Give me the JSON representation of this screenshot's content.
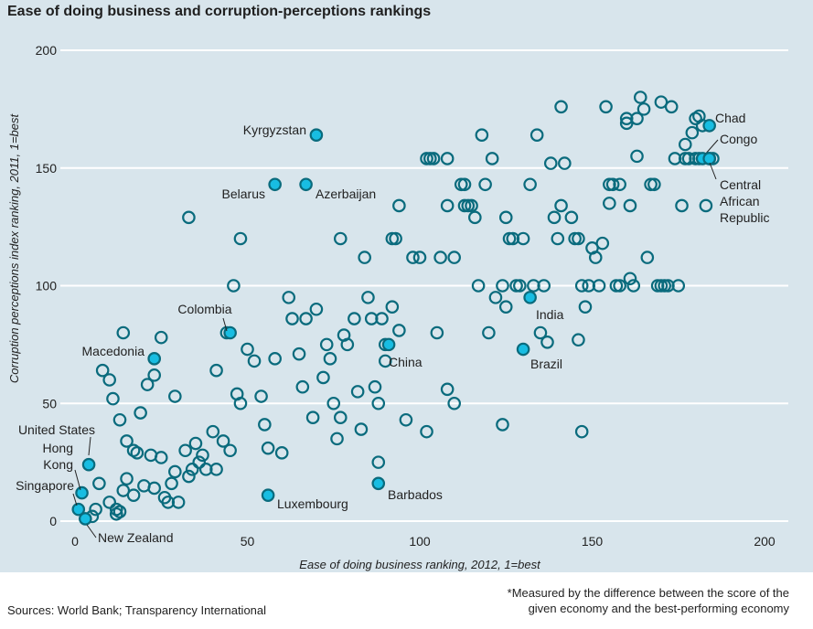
{
  "header": {
    "title": "Ease of doing business and corruption-perceptions rankings"
  },
  "chart_data": {
    "type": "scatter",
    "title": "Ease of doing business and corruption-perceptions rankings",
    "xlabel": "Ease of doing business ranking, 2012, 1=best",
    "ylabel": "Corruption perceptions index ranking, 2011, 1=best",
    "xlim": [
      -5,
      205
    ],
    "ylim": [
      0,
      202
    ],
    "xticks": [
      0,
      50,
      100,
      150,
      200
    ],
    "yticks": [
      0,
      50,
      100,
      150,
      200
    ],
    "grid": "horizontal",
    "colors": {
      "background": "#d8e5ec",
      "point_stroke": "#0a6b7d",
      "highlight_fill": "#18bde2",
      "grid": "#ffffff",
      "text": "#222222"
    },
    "highlighted": [
      {
        "name": "Kyrgyzstan",
        "x": 70,
        "y": 164
      },
      {
        "name": "Belarus",
        "x": 58,
        "y": 143
      },
      {
        "name": "Azerbaijan",
        "x": 67,
        "y": 143
      },
      {
        "name": "Chad",
        "x": 184,
        "y": 168
      },
      {
        "name": "Congo",
        "x": 182,
        "y": 154
      },
      {
        "name": "Central African Republic",
        "x": 184,
        "y": 154
      },
      {
        "name": "Colombia",
        "x": 45,
        "y": 80
      },
      {
        "name": "Macedonia",
        "x": 23,
        "y": 69
      },
      {
        "name": "China",
        "x": 91,
        "y": 75
      },
      {
        "name": "India",
        "x": 132,
        "y": 95
      },
      {
        "name": "Brazil",
        "x": 130,
        "y": 73
      },
      {
        "name": "United States",
        "x": 4,
        "y": 24
      },
      {
        "name": "Hong Kong",
        "x": 2,
        "y": 12
      },
      {
        "name": "Singapore",
        "x": 1,
        "y": 5
      },
      {
        "name": "New Zealand",
        "x": 3,
        "y": 1
      },
      {
        "name": "Luxembourg",
        "x": 56,
        "y": 11
      },
      {
        "name": "Barbados",
        "x": 88,
        "y": 16
      }
    ],
    "others": [
      [
        5,
        2
      ],
      [
        6,
        5
      ],
      [
        7,
        16
      ],
      [
        10,
        8
      ],
      [
        12,
        3
      ],
      [
        12,
        5
      ],
      [
        13,
        4
      ],
      [
        14,
        13
      ],
      [
        15,
        18
      ],
      [
        17,
        11
      ],
      [
        18,
        29
      ],
      [
        20,
        15
      ],
      [
        22,
        28
      ],
      [
        23,
        14
      ],
      [
        25,
        27
      ],
      [
        26,
        10
      ],
      [
        27,
        8
      ],
      [
        28,
        16
      ],
      [
        29,
        21
      ],
      [
        30,
        8
      ],
      [
        32,
        30
      ],
      [
        33,
        19
      ],
      [
        34,
        22
      ],
      [
        35,
        33
      ],
      [
        36,
        25
      ],
      [
        37,
        28
      ],
      [
        38,
        22
      ],
      [
        40,
        38
      ],
      [
        41,
        22
      ],
      [
        43,
        34
      ],
      [
        45,
        30
      ],
      [
        47,
        54
      ],
      [
        48,
        50
      ],
      [
        50,
        73
      ],
      [
        52,
        68
      ],
      [
        54,
        53
      ],
      [
        55,
        41
      ],
      [
        56,
        31
      ],
      [
        58,
        69
      ],
      [
        60,
        29
      ],
      [
        62,
        95
      ],
      [
        63,
        86
      ],
      [
        65,
        71
      ],
      [
        66,
        57
      ],
      [
        67,
        86
      ],
      [
        69,
        44
      ],
      [
        70,
        90
      ],
      [
        72,
        61
      ],
      [
        73,
        75
      ],
      [
        74,
        69
      ],
      [
        75,
        50
      ],
      [
        76,
        35
      ],
      [
        77,
        44
      ],
      [
        78,
        79
      ],
      [
        79,
        75
      ],
      [
        81,
        86
      ],
      [
        82,
        55
      ],
      [
        83,
        39
      ],
      [
        85,
        95
      ],
      [
        86,
        86
      ],
      [
        87,
        57
      ],
      [
        88,
        50
      ],
      [
        89,
        86
      ],
      [
        90,
        68
      ],
      [
        92,
        91
      ],
      [
        94,
        81
      ],
      [
        96,
        43
      ],
      [
        8,
        64
      ],
      [
        10,
        60
      ],
      [
        11,
        52
      ],
      [
        13,
        43
      ],
      [
        15,
        34
      ],
      [
        17,
        30
      ],
      [
        19,
        46
      ],
      [
        21,
        58
      ],
      [
        23,
        62
      ],
      [
        25,
        78
      ],
      [
        33,
        129
      ],
      [
        46,
        100
      ],
      [
        48,
        120
      ],
      [
        44,
        80
      ],
      [
        41,
        64
      ],
      [
        29,
        53
      ],
      [
        14,
        80
      ],
      [
        77,
        120
      ],
      [
        84,
        112
      ],
      [
        92,
        120
      ],
      [
        93,
        120
      ],
      [
        94,
        134
      ],
      [
        98,
        112
      ],
      [
        100,
        112
      ],
      [
        102,
        154
      ],
      [
        103,
        154
      ],
      [
        104,
        154
      ],
      [
        108,
        154
      ],
      [
        108,
        134
      ],
      [
        110,
        112
      ],
      [
        112,
        143
      ],
      [
        113,
        134
      ],
      [
        114,
        134
      ],
      [
        115,
        134
      ],
      [
        116,
        129
      ],
      [
        117,
        100
      ],
      [
        118,
        164
      ],
      [
        119,
        143
      ],
      [
        121,
        154
      ],
      [
        122,
        95
      ],
      [
        124,
        100
      ],
      [
        125,
        91
      ],
      [
        125,
        129
      ],
      [
        126,
        120
      ],
      [
        127,
        120
      ],
      [
        128,
        100
      ],
      [
        130,
        120
      ],
      [
        132,
        143
      ],
      [
        133,
        100
      ],
      [
        134,
        164
      ],
      [
        136,
        100
      ],
      [
        137,
        76
      ],
      [
        138,
        152
      ],
      [
        139,
        129
      ],
      [
        140,
        120
      ],
      [
        141,
        134
      ],
      [
        142,
        152
      ],
      [
        144,
        129
      ],
      [
        145,
        120
      ],
      [
        146,
        120
      ],
      [
        147,
        100
      ],
      [
        148,
        91
      ],
      [
        149,
        100
      ],
      [
        150,
        116
      ],
      [
        151,
        112
      ],
      [
        152,
        100
      ],
      [
        153,
        118
      ],
      [
        154,
        176
      ],
      [
        155,
        143
      ],
      [
        156,
        143
      ],
      [
        157,
        100
      ],
      [
        158,
        143
      ],
      [
        160,
        171
      ],
      [
        161,
        134
      ],
      [
        162,
        100
      ],
      [
        163,
        171
      ],
      [
        165,
        175
      ],
      [
        166,
        112
      ],
      [
        167,
        143
      ],
      [
        168,
        143
      ],
      [
        169,
        100
      ],
      [
        170,
        100
      ],
      [
        171,
        100
      ],
      [
        172,
        100
      ],
      [
        173,
        176
      ],
      [
        174,
        154
      ],
      [
        175,
        100
      ],
      [
        176,
        134
      ],
      [
        177,
        154
      ],
      [
        178,
        154
      ],
      [
        179,
        165
      ],
      [
        180,
        154
      ],
      [
        181,
        172
      ],
      [
        182,
        168
      ],
      [
        183,
        134
      ],
      [
        184,
        154
      ],
      [
        185,
        154
      ],
      [
        141,
        176
      ],
      [
        155,
        135
      ],
      [
        158,
        100
      ],
      [
        161,
        103
      ],
      [
        164,
        180
      ],
      [
        170,
        178
      ],
      [
        177,
        160
      ],
      [
        180,
        171
      ],
      [
        181,
        154
      ],
      [
        163,
        155
      ],
      [
        160,
        169
      ],
      [
        124,
        41
      ],
      [
        108,
        56
      ],
      [
        102,
        38
      ],
      [
        110,
        50
      ],
      [
        147,
        38
      ],
      [
        129,
        100
      ],
      [
        88,
        25
      ],
      [
        90,
        75
      ],
      [
        105,
        80
      ],
      [
        120,
        80
      ],
      [
        135,
        80
      ],
      [
        146,
        77
      ],
      [
        106,
        112
      ],
      [
        113,
        143
      ]
    ]
  },
  "footer": {
    "sources": "Sources: World Bank; Transparency International",
    "note_line1": "*Measured by the difference between the score of the",
    "note_line2": "given economy and the best-performing economy"
  }
}
